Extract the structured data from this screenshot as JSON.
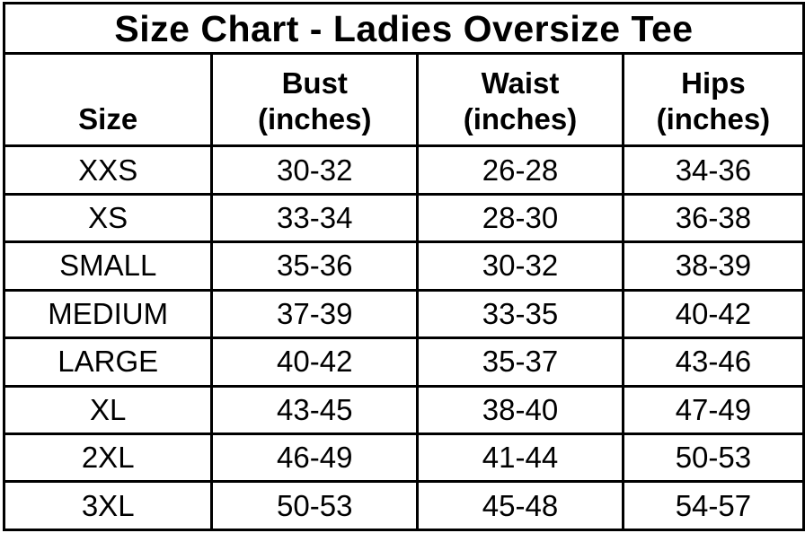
{
  "colors": {
    "border": "#000000",
    "text": "#000000",
    "background": "#ffffff"
  },
  "headers": [
    {
      "name": "Size",
      "unit": ""
    },
    {
      "name": "Bust",
      "unit": "(inches)"
    },
    {
      "name": "Waist",
      "unit": "(inches)"
    },
    {
      "name": "Hips",
      "unit": "(inches)"
    }
  ],
  "chart_data": {
    "type": "table",
    "title": "Size Chart - Ladies Oversize Tee",
    "columns": [
      "Size",
      "Bust (inches)",
      "Waist (inches)",
      "Hips (inches)"
    ],
    "rows": [
      [
        "XXS",
        "30-32",
        "26-28",
        "34-36"
      ],
      [
        "XS",
        "33-34",
        "28-30",
        "36-38"
      ],
      [
        "SMALL",
        "35-36",
        "30-32",
        "38-39"
      ],
      [
        "MEDIUM",
        "37-39",
        "33-35",
        "40-42"
      ],
      [
        "LARGE",
        "40-42",
        "35-37",
        "43-46"
      ],
      [
        "XL",
        "43-45",
        "38-40",
        "47-49"
      ],
      [
        "2XL",
        "46-49",
        "41-44",
        "50-53"
      ],
      [
        "3XL",
        "50-53",
        "45-48",
        "54-57"
      ]
    ]
  }
}
